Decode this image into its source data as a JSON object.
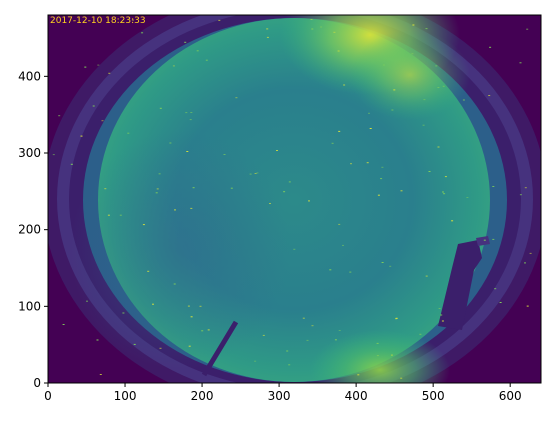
{
  "image": {
    "timestamp_overlay": "2017-12-10 18:23:33",
    "description_role": "fisheye all-sky camera frame displayed with viridis colormap",
    "colors": {
      "background_dark": "#440154",
      "ring_dark": "#3b1f6b",
      "sky_teal": "#26828e",
      "sky_green": "#35b779",
      "sky_yellow": "#fde725",
      "overlay_text": "#ffd21f"
    }
  },
  "axes": {
    "x_ticks": [
      "0",
      "100",
      "200",
      "300",
      "400",
      "500",
      "600"
    ],
    "y_ticks": [
      "0",
      "100",
      "200",
      "300",
      "400"
    ],
    "xlim": [
      0,
      640
    ],
    "ylim": [
      0,
      480
    ]
  }
}
